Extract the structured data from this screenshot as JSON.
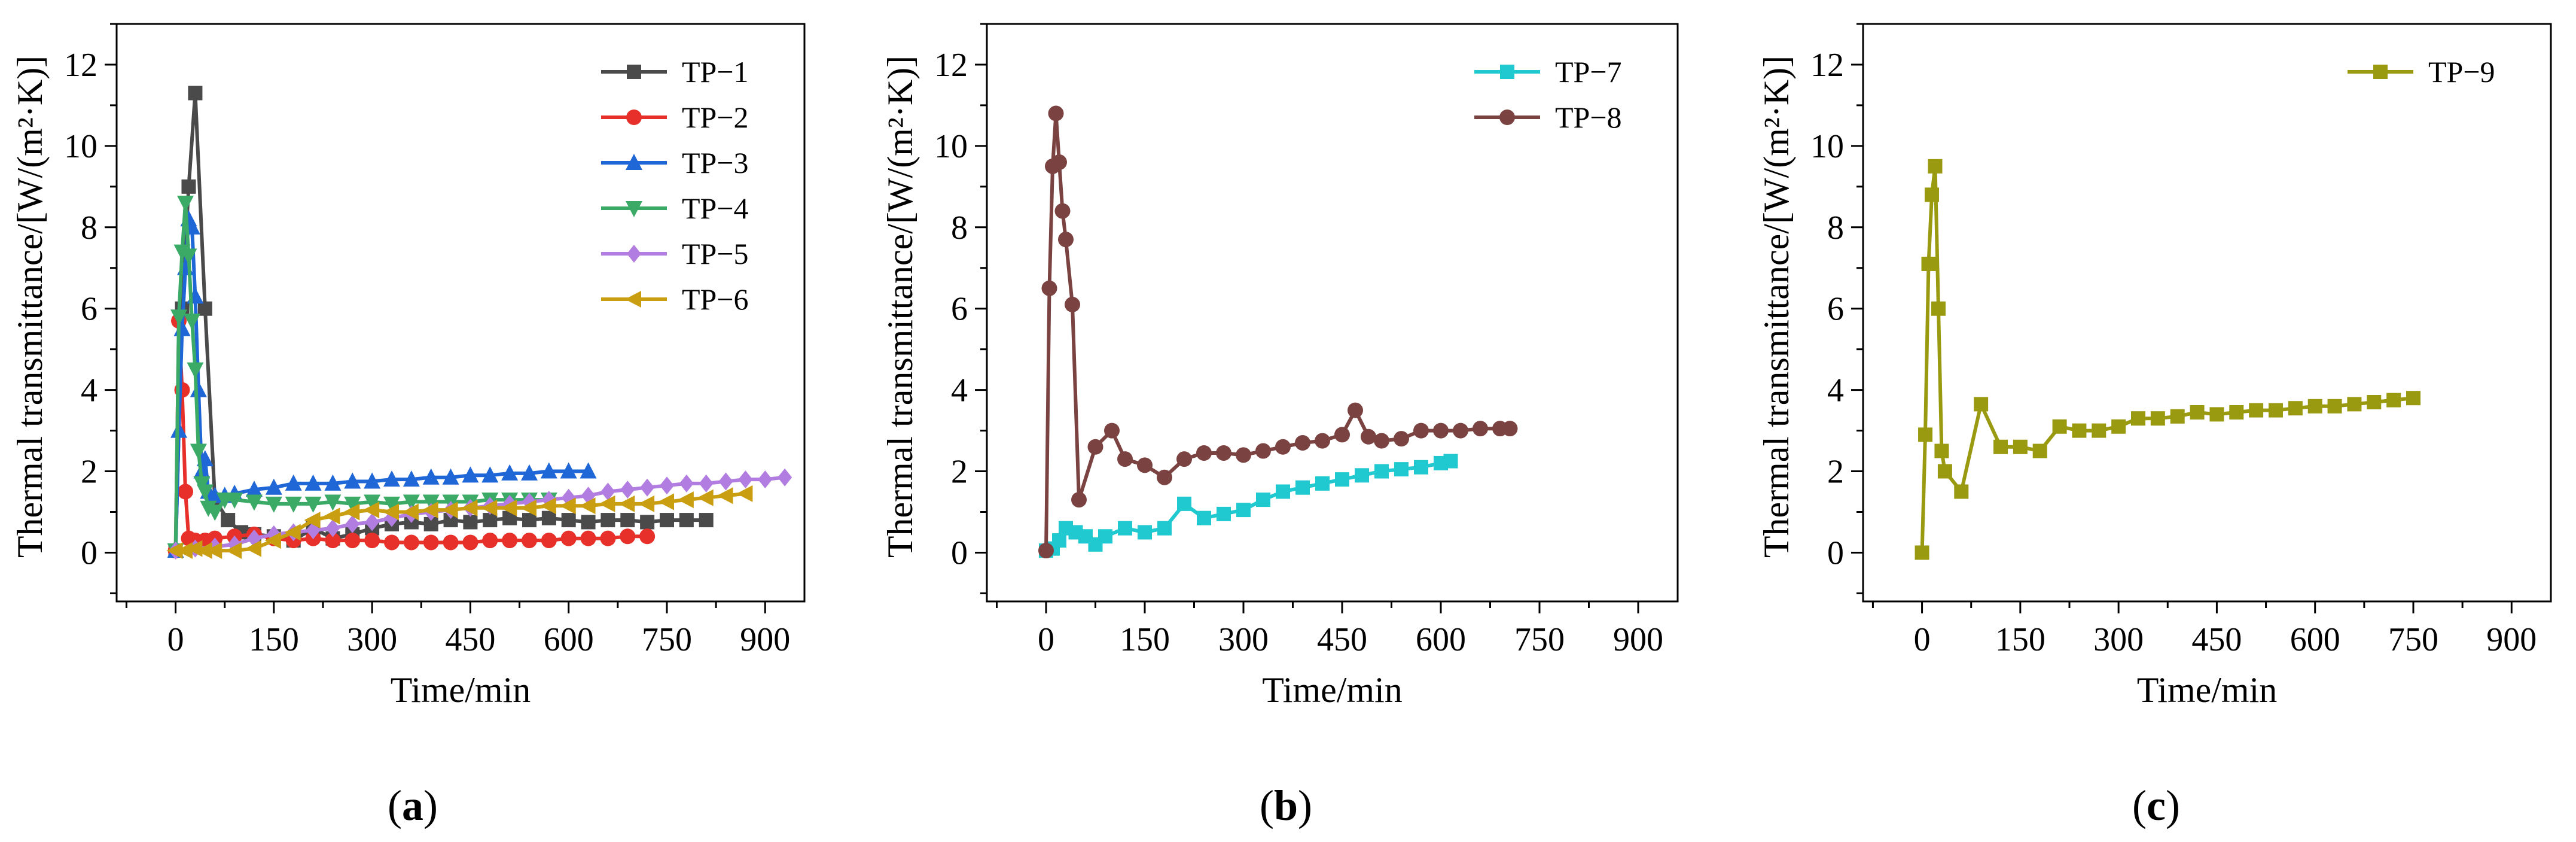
{
  "figure": {
    "panel_labels": [
      "(a)",
      "(b)",
      "(c)"
    ]
  },
  "chart_data": [
    {
      "type": "line",
      "panel": "(a)",
      "xlabel": "Time/min",
      "ylabel": "Thermal transmittance/[W/(m²·K)]",
      "xlim": [
        -90,
        960
      ],
      "ylim": [
        -1.2,
        13
      ],
      "xticks": [
        0,
        150,
        300,
        450,
        600,
        750,
        900
      ],
      "yticks": [
        0,
        2,
        4,
        6,
        8,
        10,
        12
      ],
      "legend_position": "top-right",
      "series": [
        {
          "name": "TP−1",
          "color": "#4a4a4a",
          "marker": "square",
          "x": [
            0,
            10,
            20,
            30,
            45,
            60,
            80,
            100,
            120,
            150,
            180,
            210,
            240,
            270,
            300,
            330,
            360,
            390,
            420,
            450,
            480,
            510,
            540,
            570,
            600,
            630,
            660,
            690,
            720,
            750,
            780,
            810
          ],
          "y": [
            0.05,
            6.0,
            9.0,
            11.3,
            6.0,
            1.3,
            0.8,
            0.5,
            0.45,
            0.4,
            0.3,
            0.6,
            0.35,
            0.45,
            0.6,
            0.7,
            0.75,
            0.7,
            0.8,
            0.75,
            0.8,
            0.85,
            0.8,
            0.85,
            0.8,
            0.75,
            0.8,
            0.8,
            0.75,
            0.8,
            0.8,
            0.8
          ]
        },
        {
          "name": "TP−2",
          "color": "#e8302a",
          "marker": "circle",
          "x": [
            0,
            5,
            10,
            15,
            20,
            25,
            30,
            45,
            60,
            90,
            120,
            150,
            180,
            210,
            240,
            270,
            300,
            330,
            360,
            390,
            420,
            450,
            480,
            510,
            540,
            570,
            600,
            630,
            660,
            690,
            720
          ],
          "y": [
            0.05,
            5.7,
            4.0,
            1.5,
            0.35,
            0.3,
            0.3,
            0.3,
            0.35,
            0.4,
            0.45,
            0.35,
            0.3,
            0.35,
            0.3,
            0.3,
            0.3,
            0.25,
            0.25,
            0.25,
            0.25,
            0.25,
            0.3,
            0.3,
            0.3,
            0.3,
            0.35,
            0.35,
            0.35,
            0.4,
            0.4
          ]
        },
        {
          "name": "TP−3",
          "color": "#1f66d6",
          "marker": "triangle-up",
          "x": [
            0,
            5,
            10,
            15,
            20,
            25,
            30,
            35,
            40,
            45,
            50,
            60,
            75,
            90,
            120,
            150,
            180,
            210,
            240,
            270,
            300,
            330,
            360,
            390,
            420,
            450,
            480,
            510,
            540,
            570,
            600,
            630
          ],
          "y": [
            0.05,
            3.0,
            5.5,
            7.0,
            8.2,
            8.0,
            6.3,
            4.0,
            2.0,
            2.3,
            1.5,
            1.4,
            1.4,
            1.45,
            1.55,
            1.6,
            1.7,
            1.7,
            1.7,
            1.75,
            1.75,
            1.8,
            1.8,
            1.85,
            1.85,
            1.9,
            1.9,
            1.95,
            1.95,
            2.0,
            2.0,
            2.0
          ]
        },
        {
          "name": "TP−4",
          "color": "#3aaa66",
          "marker": "triangle-down",
          "x": [
            0,
            5,
            10,
            15,
            20,
            25,
            30,
            35,
            40,
            45,
            50,
            60,
            75,
            90,
            120,
            150,
            180,
            210,
            240,
            270,
            300,
            330,
            360,
            390,
            420,
            450,
            480,
            510,
            540,
            570
          ],
          "y": [
            0.05,
            5.8,
            7.4,
            8.6,
            7.3,
            5.7,
            4.5,
            2.5,
            1.7,
            1.5,
            1.1,
            1.0,
            1.3,
            1.3,
            1.25,
            1.2,
            1.2,
            1.2,
            1.25,
            1.2,
            1.25,
            1.2,
            1.25,
            1.25,
            1.25,
            1.25,
            1.3,
            1.3,
            1.3,
            1.3
          ]
        },
        {
          "name": "TP−5",
          "color": "#b27de0",
          "marker": "diamond",
          "x": [
            0,
            30,
            60,
            90,
            120,
            150,
            180,
            210,
            240,
            270,
            300,
            330,
            360,
            390,
            420,
            450,
            480,
            510,
            540,
            570,
            600,
            630,
            660,
            690,
            720,
            750,
            780,
            810,
            840,
            870,
            900,
            930
          ],
          "y": [
            0.05,
            0.1,
            0.15,
            0.2,
            0.35,
            0.45,
            0.5,
            0.55,
            0.6,
            0.7,
            0.75,
            0.85,
            0.95,
            1.0,
            1.05,
            1.1,
            1.15,
            1.2,
            1.25,
            1.3,
            1.35,
            1.4,
            1.5,
            1.55,
            1.6,
            1.65,
            1.7,
            1.7,
            1.75,
            1.8,
            1.8,
            1.85
          ]
        },
        {
          "name": "TP−6",
          "color": "#c99e10",
          "marker": "triangle-left",
          "x": [
            0,
            15,
            30,
            45,
            60,
            90,
            120,
            150,
            180,
            210,
            240,
            270,
            300,
            330,
            360,
            390,
            420,
            450,
            480,
            510,
            540,
            570,
            600,
            630,
            660,
            690,
            720,
            750,
            780,
            810,
            840,
            870
          ],
          "y": [
            0.05,
            0.05,
            0.1,
            0.05,
            0.05,
            0.05,
            0.1,
            0.3,
            0.5,
            0.8,
            0.9,
            1.0,
            1.05,
            1.0,
            1.0,
            1.05,
            1.05,
            1.1,
            1.1,
            1.1,
            1.1,
            1.15,
            1.15,
            1.15,
            1.2,
            1.2,
            1.2,
            1.25,
            1.3,
            1.35,
            1.4,
            1.45
          ]
        }
      ]
    },
    {
      "type": "line",
      "panel": "(b)",
      "xlabel": "Time/min",
      "ylabel": "Thermal transmittance/[W/(m²·K)]",
      "xlim": [
        -90,
        960
      ],
      "ylim": [
        -1.2,
        13
      ],
      "xticks": [
        0,
        150,
        300,
        450,
        600,
        750,
        900
      ],
      "yticks": [
        0,
        2,
        4,
        6,
        8,
        10,
        12
      ],
      "legend_position": "top-right",
      "series": [
        {
          "name": "TP−7",
          "color": "#1fc9cf",
          "marker": "square",
          "x": [
            0,
            10,
            20,
            30,
            45,
            60,
            75,
            90,
            120,
            150,
            180,
            210,
            240,
            270,
            300,
            330,
            360,
            390,
            420,
            450,
            480,
            510,
            540,
            570,
            600,
            615
          ],
          "y": [
            0.05,
            0.1,
            0.3,
            0.6,
            0.5,
            0.4,
            0.2,
            0.4,
            0.6,
            0.5,
            0.6,
            1.2,
            0.85,
            0.95,
            1.05,
            1.3,
            1.5,
            1.6,
            1.7,
            1.8,
            1.9,
            2.0,
            2.05,
            2.1,
            2.2,
            2.25
          ]
        },
        {
          "name": "TP−8",
          "color": "#7a4240",
          "marker": "circle",
          "x": [
            0,
            5,
            10,
            15,
            20,
            25,
            30,
            40,
            50,
            75,
            100,
            120,
            150,
            180,
            210,
            240,
            270,
            300,
            330,
            360,
            390,
            420,
            450,
            470,
            490,
            510,
            540,
            570,
            600,
            630,
            660,
            690,
            705
          ],
          "y": [
            0.05,
            6.5,
            9.5,
            10.8,
            9.6,
            8.4,
            7.7,
            6.1,
            1.3,
            2.6,
            3.0,
            2.3,
            2.15,
            1.85,
            2.3,
            2.45,
            2.45,
            2.4,
            2.5,
            2.6,
            2.7,
            2.75,
            2.9,
            3.5,
            2.85,
            2.75,
            2.8,
            3.0,
            3.0,
            3.0,
            3.05,
            3.05,
            3.05
          ]
        }
      ]
    },
    {
      "type": "line",
      "panel": "(c)",
      "xlabel": "Time/min",
      "ylabel": "Thermal transmittance/[W/(m²·K)]",
      "xlim": [
        -90,
        960
      ],
      "ylim": [
        -1.2,
        13
      ],
      "xticks": [
        0,
        150,
        300,
        450,
        600,
        750,
        900
      ],
      "yticks": [
        0,
        2,
        4,
        6,
        8,
        10,
        12
      ],
      "legend_position": "top-right",
      "series": [
        {
          "name": "TP−9",
          "color": "#9a9a10",
          "marker": "square",
          "x": [
            0,
            5,
            10,
            15,
            20,
            25,
            30,
            35,
            60,
            90,
            120,
            150,
            180,
            210,
            240,
            270,
            300,
            330,
            360,
            390,
            420,
            450,
            480,
            510,
            540,
            570,
            600,
            630,
            660,
            690,
            720,
            750
          ],
          "y": [
            0.0,
            2.9,
            7.1,
            8.8,
            9.5,
            6.0,
            2.5,
            2.0,
            1.5,
            3.65,
            2.6,
            2.6,
            2.5,
            3.1,
            3.0,
            3.0,
            3.1,
            3.3,
            3.3,
            3.35,
            3.45,
            3.4,
            3.45,
            3.5,
            3.5,
            3.55,
            3.6,
            3.6,
            3.65,
            3.7,
            3.75,
            3.8
          ]
        }
      ]
    }
  ]
}
